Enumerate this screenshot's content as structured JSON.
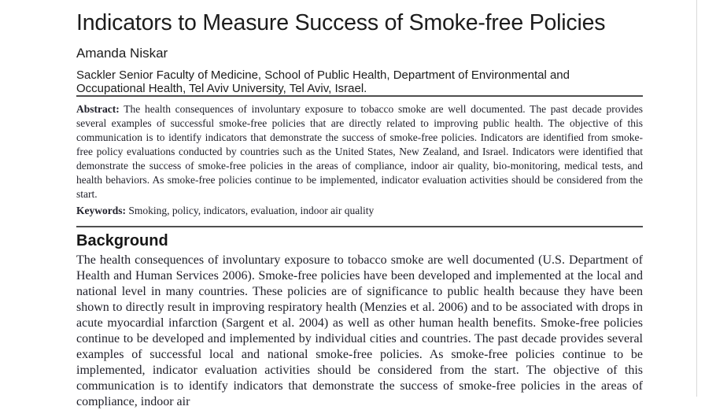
{
  "page": {
    "title": "Indicators to Measure Success of Smoke-free Policies",
    "author": "Amanda Niskar",
    "affiliation": "Sackler Senior Faculty of Medicine, School of Public Health, Department of Environmental and Occupational Health, Tel Aviv University, Tel Aviv, Israel.",
    "abstract": {
      "label": "Abstract:",
      "text": "The health consequences of involuntary exposure to tobacco smoke are well documented. The past decade provides several examples of successful smoke-free policies that are directly related to improving public health. The objective of this communication is to identify indicators that demonstrate the success of smoke-free policies. Indicators are identified from smoke-free policy evaluations conducted by countries such as the United States, New Zealand, and Israel. Indicators were identified that demonstrate the success of smoke-free policies in the areas of compliance, indoor air quality, bio-monitoring, medical tests, and health behaviors. As smoke-free policies continue to be implemented, indicator evaluation activities should be considered from the start."
    },
    "keywords": {
      "label": "Keywords:",
      "text": "Smoking, policy, indicators, evaluation, indoor air quality"
    },
    "sections": [
      {
        "heading": "Background",
        "paragraph": "The health consequences of involuntary exposure to tobacco smoke are well documented (U.S. Department of Health and Human Services 2006). Smoke-free policies have been developed and implemented at the local and national level in many countries. These policies are of significance to public health because they have been shown to directly result in improving respiratory health (Menzies et al. 2006) and to be associated with drops in acute myocardial infarction (Sargent et al. 2004) as well as other human health benefits. Smoke-free policies continue to be developed and implemented by individual cities and countries. The past decade provides several examples of successful local and national smoke-free policies. As smoke-free policies continue to be implemented, indicator evaluation activities should be considered from the start. The objective of this communication is to identify indicators that demonstrate the success of smoke-free policies in the areas of compliance, indoor air"
      }
    ]
  },
  "colors": {
    "background": "#ffffff",
    "text": "#1f1f1f",
    "rule": "#4f4f4f",
    "page_edge": "#d9d9d9"
  }
}
